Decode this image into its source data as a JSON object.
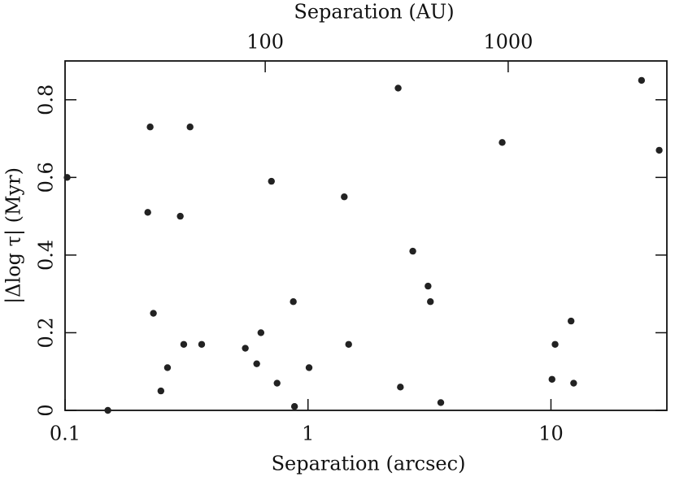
{
  "chart_data": {
    "type": "scatter",
    "x_label": "Separation (arcsec)",
    "x2_label": "Separation (AU)",
    "y_label": "|Δlog τ| (Myr)",
    "x_scale": "log",
    "xlim": [
      0.1,
      30
    ],
    "xticks": [
      0.1,
      1,
      10
    ],
    "x2lim": [
      15,
      4500
    ],
    "x2ticks": [
      100,
      1000
    ],
    "ylim": [
      0,
      0.9
    ],
    "yticks": [
      0,
      0.2,
      0.4,
      0.6,
      0.8
    ],
    "color": "#222",
    "series": [
      {
        "x": [
          0.102,
          0.15,
          0.219,
          0.224,
          0.231,
          0.248,
          0.264,
          0.298,
          0.308,
          0.327,
          0.365,
          0.552,
          0.615,
          0.64,
          0.707,
          0.746,
          0.87,
          0.88,
          1.01,
          1.41,
          1.47,
          2.35,
          2.4,
          2.7,
          3.12,
          3.19,
          3.52,
          6.3,
          10.1,
          10.4,
          12.1,
          12.4,
          23.6,
          27.9
        ],
        "values": [
          0.6,
          0,
          0.51,
          0.73,
          0.25,
          0.05,
          0.11,
          0.5,
          0.17,
          0.73,
          0.17,
          0.16,
          0.12,
          0.2,
          0.59,
          0.07,
          0.28,
          0.01,
          0.11,
          0.55,
          0.17,
          0.83,
          0.06,
          0.41,
          0.32,
          0.28,
          0.02,
          0.69,
          0.08,
          0.17,
          0.23,
          0.07,
          0.85,
          0.67
        ]
      }
    ]
  }
}
